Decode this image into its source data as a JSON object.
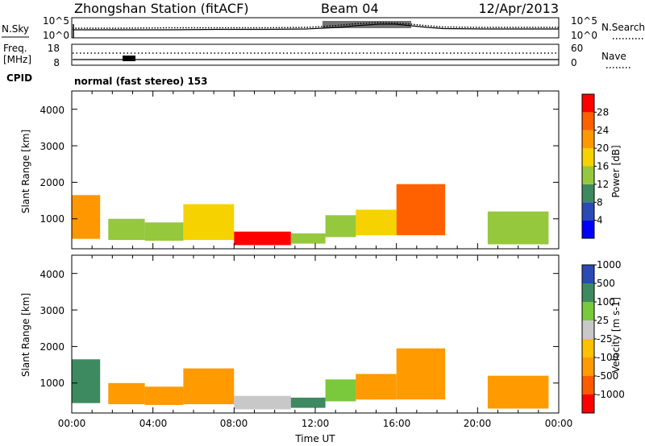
{
  "header": {
    "station": "Zhongshan Station (fitACF)",
    "beam": "Beam 04",
    "date": "12/Apr/2013"
  },
  "noise_panel": {
    "left_label": "N.Sky",
    "right_label": "N.Search",
    "left_ticks": [
      "10^5",
      "10^0"
    ],
    "right_ticks": [
      "10^5",
      "10^0"
    ]
  },
  "freq_panel": {
    "left_label_1": "Freq.",
    "left_label_2": "[MHz]",
    "left_ticks": [
      "18",
      "8"
    ],
    "right_label": "Nave",
    "right_ticks": [
      "60",
      "0"
    ]
  },
  "cpid": {
    "label": "CPID",
    "value": "normal (fast stereo) 153"
  },
  "x_axis": {
    "ticks": [
      "00:00",
      "04:00",
      "08:00",
      "12:00",
      "16:00",
      "20:00",
      "00:00"
    ],
    "label": "Time UT"
  },
  "colors": {
    "power": [
      "#0000ff",
      "#2b4ab4",
      "#3e8a60",
      "#95c83c",
      "#f5d200",
      "#ff9800",
      "#ff6000",
      "#ff0000"
    ],
    "velocity": [
      "#ff0000",
      "#ff5a00",
      "#ff9a00",
      "#ffc000",
      "#c8c8c8",
      "#7ac83c",
      "#3e8a60",
      "#2b4ab4"
    ]
  },
  "chart_data": [
    {
      "type": "heatmap",
      "title": "Power",
      "ylabel": "Slant Range [km]",
      "y_ticks": [
        "1000",
        "2000",
        "3000",
        "4000"
      ],
      "xlim": [
        "00:00",
        "24:00"
      ],
      "ylim": [
        180,
        4500
      ],
      "colorbar": {
        "label": "Power [dB]",
        "ticks": [
          "4",
          "8",
          "12",
          "16",
          "20",
          "24",
          "28"
        ],
        "range": [
          0,
          32
        ]
      },
      "echo_regions": [
        {
          "t0": 0.0,
          "t1": 1.4,
          "r0": 450,
          "r1": 1650,
          "value_dB": 20
        },
        {
          "t0": 1.8,
          "t1": 3.6,
          "r0": 420,
          "r1": 1000,
          "value_dB": 12
        },
        {
          "t0": 3.6,
          "t1": 5.5,
          "r0": 400,
          "r1": 900,
          "value_dB": 14
        },
        {
          "t0": 5.5,
          "t1": 8.0,
          "r0": 420,
          "r1": 1400,
          "value_dB": 16
        },
        {
          "t0": 8.0,
          "t1": 10.8,
          "r0": 280,
          "r1": 650,
          "value_dB": 28
        },
        {
          "t0": 10.8,
          "t1": 12.5,
          "r0": 320,
          "r1": 600,
          "value_dB": 12
        },
        {
          "t0": 12.5,
          "t1": 14.0,
          "r0": 500,
          "r1": 1100,
          "value_dB": 12
        },
        {
          "t0": 14.0,
          "t1": 16.0,
          "r0": 550,
          "r1": 1250,
          "value_dB": 18
        },
        {
          "t0": 16.0,
          "t1": 18.4,
          "r0": 550,
          "r1": 1950,
          "value_dB": 24
        },
        {
          "t0": 20.5,
          "t1": 23.5,
          "r0": 300,
          "r1": 1200,
          "value_dB": 14
        }
      ]
    },
    {
      "type": "heatmap",
      "title": "Velocity",
      "ylabel": "Slant Range [km]",
      "y_ticks": [
        "1000",
        "2000",
        "3000",
        "4000"
      ],
      "xlim": [
        "00:00",
        "24:00"
      ],
      "ylim": [
        180,
        4500
      ],
      "colorbar": {
        "label": "Velocity [m s-1]",
        "ticks": [
          "-1000",
          "-500",
          "-100",
          "-25",
          "25",
          "100",
          "500",
          "1000"
        ],
        "range": [
          -2000,
          2000
        ]
      },
      "echo_regions": [
        {
          "t0": 0.0,
          "t1": 1.4,
          "r0": 450,
          "r1": 1650,
          "value_ms": 300
        },
        {
          "t0": 1.8,
          "t1": 3.6,
          "r0": 420,
          "r1": 1000,
          "value_ms": -150
        },
        {
          "t0": 3.6,
          "t1": 5.5,
          "r0": 400,
          "r1": 900,
          "value_ms": -150
        },
        {
          "t0": 5.5,
          "t1": 8.0,
          "r0": 420,
          "r1": 1400,
          "value_ms": -150
        },
        {
          "t0": 8.0,
          "t1": 10.8,
          "r0": 280,
          "r1": 650,
          "value_ms": 10
        },
        {
          "t0": 10.8,
          "t1": 12.5,
          "r0": 320,
          "r1": 600,
          "value_ms": 150
        },
        {
          "t0": 12.5,
          "t1": 14.0,
          "r0": 500,
          "r1": 1100,
          "value_ms": 80
        },
        {
          "t0": 14.0,
          "t1": 16.0,
          "r0": 550,
          "r1": 1250,
          "value_ms": -200
        },
        {
          "t0": 16.0,
          "t1": 18.4,
          "r0": 550,
          "r1": 1950,
          "value_ms": -300
        },
        {
          "t0": 20.5,
          "t1": 23.5,
          "r0": 300,
          "r1": 1200,
          "value_ms": -150
        }
      ]
    }
  ]
}
